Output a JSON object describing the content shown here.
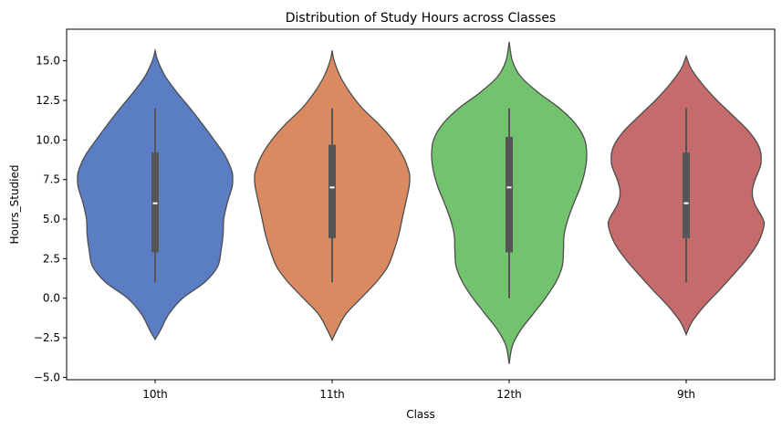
{
  "chart_data": {
    "type": "violin",
    "title": "Distribution of Study Hours across Classes",
    "xlabel": "Class",
    "ylabel": "Hours_Studied",
    "ylim": [
      -5.15,
      17.0
    ],
    "yticks": [
      -5.0,
      -2.5,
      0.0,
      2.5,
      5.0,
      7.5,
      10.0,
      12.5,
      15.0
    ],
    "ytick_labels": [
      "−5.0",
      "−2.5",
      "0.0",
      "2.5",
      "5.0",
      "7.5",
      "10.0",
      "12.5",
      "15.0"
    ],
    "categories": [
      "10th",
      "11th",
      "12th",
      "9th"
    ],
    "grid": false,
    "legend": "none",
    "series": [
      {
        "category": "10th",
        "color": "#5a7dc4",
        "min": 1,
        "q1": 2.9,
        "median": 6,
        "q3": 9.2,
        "max": 12,
        "profile": [
          [
            -2.6,
            0.0
          ],
          [
            -2.0,
            0.08
          ],
          [
            -1.0,
            0.2
          ],
          [
            0.0,
            0.4
          ],
          [
            1.0,
            0.72
          ],
          [
            2.0,
            0.91
          ],
          [
            3.0,
            0.96
          ],
          [
            4.0,
            0.99
          ],
          [
            5.0,
            1.0
          ],
          [
            6.0,
            1.05
          ],
          [
            7.0,
            1.12
          ],
          [
            7.5,
            1.13
          ],
          [
            8.0,
            1.12
          ],
          [
            9.0,
            1.02
          ],
          [
            10.0,
            0.86
          ],
          [
            11.0,
            0.69
          ],
          [
            12.0,
            0.51
          ],
          [
            13.0,
            0.32
          ],
          [
            14.0,
            0.15
          ],
          [
            15.0,
            0.04
          ],
          [
            15.65,
            0.0
          ]
        ]
      },
      {
        "category": "11th",
        "color": "#d98a60",
        "min": 1,
        "q1": 3.8,
        "median": 7,
        "q3": 9.7,
        "max": 12,
        "profile": [
          [
            -2.65,
            0.0
          ],
          [
            -2.0,
            0.07
          ],
          [
            -1.0,
            0.2
          ],
          [
            0.0,
            0.42
          ],
          [
            1.0,
            0.64
          ],
          [
            2.0,
            0.81
          ],
          [
            3.0,
            0.9
          ],
          [
            4.0,
            0.97
          ],
          [
            5.0,
            1.02
          ],
          [
            6.0,
            1.07
          ],
          [
            7.0,
            1.12
          ],
          [
            7.5,
            1.13
          ],
          [
            8.0,
            1.12
          ],
          [
            9.0,
            1.03
          ],
          [
            10.0,
            0.88
          ],
          [
            11.0,
            0.68
          ],
          [
            12.0,
            0.44
          ],
          [
            13.0,
            0.26
          ],
          [
            14.0,
            0.12
          ],
          [
            15.0,
            0.03
          ],
          [
            15.65,
            0.0
          ]
        ]
      },
      {
        "category": "12th",
        "color": "#73c26d",
        "min": 0,
        "q1": 2.9,
        "median": 7,
        "q3": 10.2,
        "max": 12,
        "profile": [
          [
            -4.15,
            0.0
          ],
          [
            -3.0,
            0.05
          ],
          [
            -2.0,
            0.18
          ],
          [
            -1.0,
            0.37
          ],
          [
            0.0,
            0.56
          ],
          [
            1.0,
            0.72
          ],
          [
            2.0,
            0.82
          ],
          [
            3.0,
            0.84
          ],
          [
            4.0,
            0.85
          ],
          [
            5.0,
            0.91
          ],
          [
            6.0,
            1.0
          ],
          [
            7.0,
            1.1
          ],
          [
            8.0,
            1.17
          ],
          [
            9.0,
            1.2
          ],
          [
            10.0,
            1.17
          ],
          [
            11.0,
            1.03
          ],
          [
            12.0,
            0.78
          ],
          [
            13.0,
            0.45
          ],
          [
            14.0,
            0.18
          ],
          [
            15.0,
            0.05
          ],
          [
            16.2,
            0.0
          ]
        ]
      },
      {
        "category": "9th",
        "color": "#c66b6b",
        "min": 1,
        "q1": 3.8,
        "median": 6,
        "q3": 9.2,
        "max": 12,
        "profile": [
          [
            -2.3,
            0.0
          ],
          [
            -1.5,
            0.08
          ],
          [
            -0.5,
            0.25
          ],
          [
            0.5,
            0.46
          ],
          [
            1.5,
            0.66
          ],
          [
            2.5,
            0.85
          ],
          [
            3.5,
            1.0
          ],
          [
            4.5,
            1.08
          ],
          [
            5.0,
            1.07
          ],
          [
            6.0,
            0.95
          ],
          [
            6.75,
            0.92
          ],
          [
            7.5,
            0.96
          ],
          [
            8.5,
            1.04
          ],
          [
            9.5,
            1.02
          ],
          [
            10.5,
            0.88
          ],
          [
            11.5,
            0.66
          ],
          [
            12.5,
            0.43
          ],
          [
            13.5,
            0.23
          ],
          [
            14.5,
            0.07
          ],
          [
            15.3,
            0.0
          ]
        ]
      }
    ]
  }
}
